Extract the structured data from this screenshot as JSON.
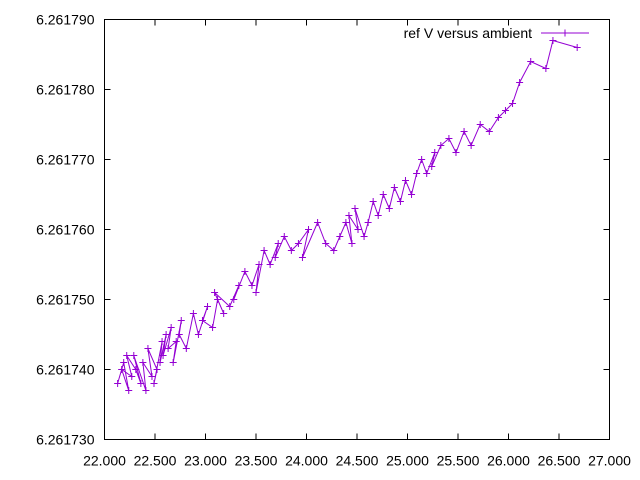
{
  "chart_data": {
    "type": "line",
    "title": "",
    "xlabel": "",
    "ylabel": "",
    "xlim": [
      22.0,
      27.0
    ],
    "ylim": [
      6.26173,
      6.26179
    ],
    "grid": false,
    "legend_position": "top-right",
    "x_ticks": [
      {
        "value": 22.0,
        "label": "22.000"
      },
      {
        "value": 22.5,
        "label": "22.500"
      },
      {
        "value": 23.0,
        "label": "23.000"
      },
      {
        "value": 23.5,
        "label": "23.500"
      },
      {
        "value": 24.0,
        "label": "24.000"
      },
      {
        "value": 24.5,
        "label": "24.500"
      },
      {
        "value": 25.0,
        "label": "25.000"
      },
      {
        "value": 25.5,
        "label": "25.500"
      },
      {
        "value": 26.0,
        "label": "26.000"
      },
      {
        "value": 26.5,
        "label": "26.500"
      },
      {
        "value": 27.0,
        "label": "27.000"
      }
    ],
    "y_ticks": [
      {
        "value": 6.26173,
        "label": "6.261730"
      },
      {
        "value": 6.26174,
        "label": "6.261740"
      },
      {
        "value": 6.26175,
        "label": "6.261750"
      },
      {
        "value": 6.26176,
        "label": "6.261760"
      },
      {
        "value": 6.26177,
        "label": "6.261770"
      },
      {
        "value": 6.26178,
        "label": "6.261780"
      },
      {
        "value": 6.26179,
        "label": "6.261790"
      }
    ],
    "series": [
      {
        "name": "ref V versus ambient",
        "color": "#9400d3",
        "marker": "plus",
        "x": [
          22.13,
          22.19,
          22.24,
          22.17,
          22.27,
          22.22,
          22.31,
          22.36,
          22.29,
          22.41,
          22.38,
          22.47,
          22.43,
          22.52,
          22.49,
          22.57,
          22.55,
          22.61,
          22.58,
          22.66,
          22.63,
          22.71,
          22.68,
          22.76,
          22.74,
          22.81,
          22.88,
          22.93,
          23.02,
          22.97,
          23.07,
          23.12,
          23.18,
          23.09,
          23.24,
          23.33,
          23.28,
          23.39,
          23.46,
          23.53,
          23.5,
          23.58,
          23.64,
          23.72,
          23.69,
          23.78,
          23.85,
          23.92,
          24.02,
          23.96,
          24.11,
          24.19,
          24.27,
          24.33,
          24.39,
          24.45,
          24.42,
          24.51,
          24.48,
          24.57,
          24.61,
          24.66,
          24.71,
          24.76,
          24.82,
          24.87,
          24.93,
          24.98,
          25.04,
          25.09,
          25.14,
          25.19,
          25.27,
          25.24,
          25.33,
          25.41,
          25.48,
          25.56,
          25.63,
          25.72,
          25.81,
          25.9,
          25.97,
          26.04,
          26.11,
          26.22,
          26.37,
          26.44,
          26.68
        ],
        "y": [
          6.261738,
          6.261741,
          6.261737,
          6.26174,
          6.261739,
          6.261742,
          6.26174,
          6.261738,
          6.261742,
          6.261737,
          6.261741,
          6.261739,
          6.261743,
          6.26174,
          6.261738,
          6.261744,
          6.261741,
          6.261745,
          6.261742,
          6.261746,
          6.261743,
          6.261744,
          6.261741,
          6.261747,
          6.261745,
          6.261743,
          6.261748,
          6.261745,
          6.261749,
          6.261747,
          6.261746,
          6.26175,
          6.261748,
          6.261751,
          6.261749,
          6.261752,
          6.26175,
          6.261754,
          6.261752,
          6.261755,
          6.261751,
          6.261757,
          6.261755,
          6.261758,
          6.261756,
          6.261759,
          6.261757,
          6.261758,
          6.26176,
          6.261756,
          6.261761,
          6.261758,
          6.261757,
          6.261759,
          6.261761,
          6.261758,
          6.261762,
          6.26176,
          6.261763,
          6.261759,
          6.261761,
          6.261764,
          6.261762,
          6.261765,
          6.261763,
          6.261766,
          6.261764,
          6.261767,
          6.261765,
          6.261768,
          6.26177,
          6.261768,
          6.261771,
          6.261769,
          6.261772,
          6.261773,
          6.261771,
          6.261774,
          6.261772,
          6.261775,
          6.261774,
          6.261776,
          6.261777,
          6.261778,
          6.261781,
          6.261784,
          6.261783,
          6.261787,
          6.261786
        ]
      }
    ]
  }
}
